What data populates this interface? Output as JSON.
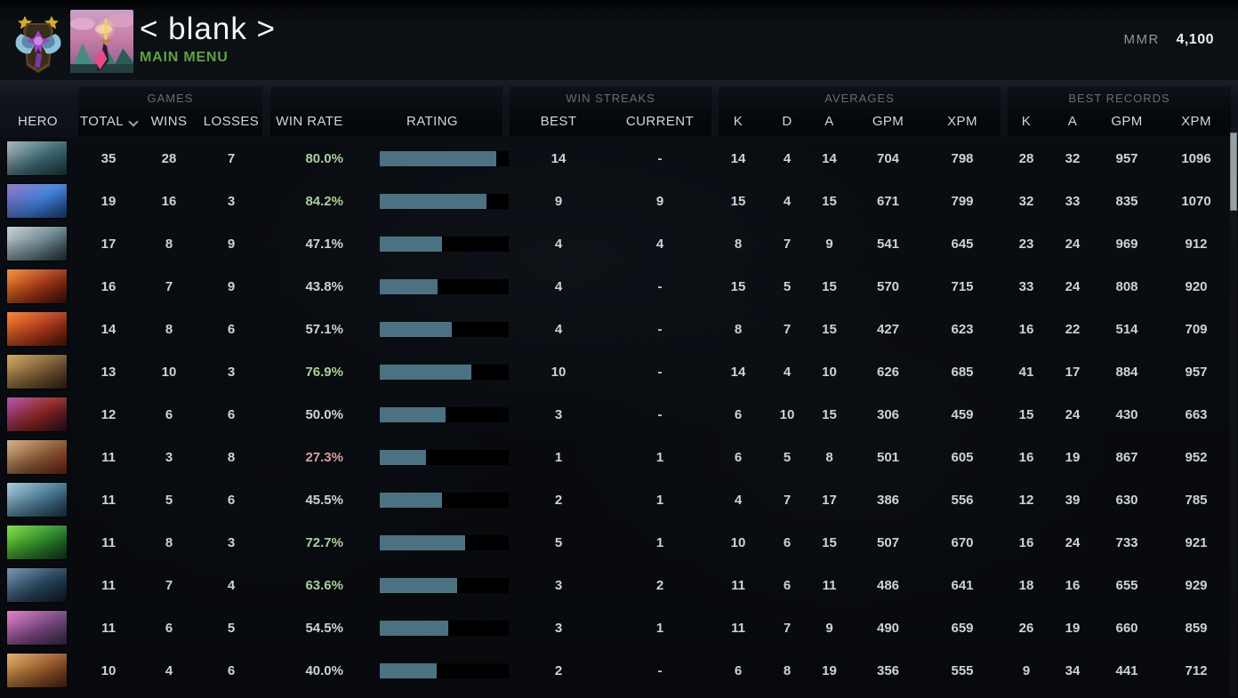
{
  "app": {
    "title": "< blank >",
    "main_menu_label": "MAIN MENU",
    "mmr_label": "MMR",
    "mmr_value": "4,100",
    "rank_medal_icon": "ancient-rank-medal",
    "avatar_icon": "pixel-art-swordsman-avatar"
  },
  "colors": {
    "main_menu_green": "#5fa245",
    "rating_bar_fill": "#4c7182",
    "rating_bar_track": "#000000",
    "win_rate_green": "#a9cf9e",
    "win_rate_red": "#d9a0a0",
    "win_rate_neutral": "#ced3d7"
  },
  "table": {
    "hero_label": "HERO",
    "header": {
      "games_group": "GAMES",
      "total": "TOTAL",
      "sort_icon": "chevron-down",
      "wins": "WINS",
      "losses": "LOSSES",
      "win_rate": "WIN RATE",
      "rating": "RATING",
      "streaks_group": "WIN STREAKS",
      "best": "BEST",
      "current": "CURRENT",
      "averages_group": "AVERAGES",
      "k": "K",
      "d": "D",
      "a": "A",
      "gpm": "GPM",
      "xpm": "XPM",
      "records_group": "BEST RECORDS",
      "rk": "K",
      "ra": "A",
      "rgpm": "GPM",
      "rxpm": "XPM"
    },
    "rows": [
      {
        "hero": "kunkka",
        "portrait": [
          "#9fb0b5",
          "#3d6a74",
          "#203a40"
        ],
        "total": "35",
        "wins": "28",
        "losses": "7",
        "win_rate": "80.0%",
        "win_rate_color": "green",
        "rating_pct": 90,
        "best": "14",
        "current": "-",
        "k": "14",
        "d": "4",
        "a": "14",
        "gpm": "704",
        "xpm": "798",
        "bk": "28",
        "ba": "32",
        "bgpm": "957",
        "bxpm": "1096"
      },
      {
        "hero": "puck",
        "portrait": [
          "#8a6fc0",
          "#3f7fd8",
          "#1e3f7a"
        ],
        "total": "19",
        "wins": "16",
        "losses": "3",
        "win_rate": "84.2%",
        "win_rate_color": "green",
        "rating_pct": 83,
        "best": "9",
        "current": "9",
        "k": "15",
        "d": "4",
        "a": "15",
        "gpm": "671",
        "xpm": "799",
        "bk": "32",
        "ba": "33",
        "bgpm": "835",
        "bxpm": "1070"
      },
      {
        "hero": "sven",
        "portrait": [
          "#c5ccd0",
          "#6e8890",
          "#22343a"
        ],
        "total": "17",
        "wins": "8",
        "losses": "9",
        "win_rate": "47.1%",
        "win_rate_color": "neutral",
        "rating_pct": 48,
        "best": "4",
        "current": "4",
        "k": "8",
        "d": "7",
        "a": "9",
        "gpm": "541",
        "xpm": "645",
        "bk": "23",
        "ba": "24",
        "bgpm": "969",
        "bxpm": "912"
      },
      {
        "hero": "ember-spirit",
        "portrait": [
          "#f08a30",
          "#a33617",
          "#40100a"
        ],
        "total": "16",
        "wins": "7",
        "losses": "9",
        "win_rate": "43.8%",
        "win_rate_color": "neutral",
        "rating_pct": 45,
        "best": "4",
        "current": "-",
        "k": "15",
        "d": "5",
        "a": "15",
        "gpm": "570",
        "xpm": "715",
        "bk": "33",
        "ba": "24",
        "bgpm": "808",
        "bxpm": "920"
      },
      {
        "hero": "troll-warlord",
        "portrait": [
          "#f07a28",
          "#b03a1c",
          "#501408"
        ],
        "total": "14",
        "wins": "8",
        "losses": "6",
        "win_rate": "57.1%",
        "win_rate_color": "neutral",
        "rating_pct": 56,
        "best": "4",
        "current": "-",
        "k": "8",
        "d": "7",
        "a": "15",
        "gpm": "427",
        "xpm": "623",
        "bk": "16",
        "ba": "22",
        "bgpm": "514",
        "bxpm": "709"
      },
      {
        "hero": "batrider",
        "portrait": [
          "#c9a05c",
          "#7c5c34",
          "#34241a"
        ],
        "total": "13",
        "wins": "10",
        "losses": "3",
        "win_rate": "76.9%",
        "win_rate_color": "green",
        "rating_pct": 71,
        "best": "10",
        "current": "-",
        "k": "14",
        "d": "4",
        "a": "10",
        "gpm": "626",
        "xpm": "685",
        "bk": "41",
        "ba": "17",
        "bgpm": "884",
        "bxpm": "957"
      },
      {
        "hero": "lion",
        "portrait": [
          "#a84aa0",
          "#8c2420",
          "#2a1024"
        ],
        "total": "12",
        "wins": "6",
        "losses": "6",
        "win_rate": "50.0%",
        "win_rate_color": "neutral",
        "rating_pct": 51,
        "best": "3",
        "current": "-",
        "k": "6",
        "d": "10",
        "a": "15",
        "gpm": "306",
        "xpm": "459",
        "bk": "15",
        "ba": "24",
        "bgpm": "430",
        "bxpm": "663"
      },
      {
        "hero": "lifestealer",
        "portrait": [
          "#cfa87e",
          "#8a5a36",
          "#6e2414"
        ],
        "total": "11",
        "wins": "3",
        "losses": "8",
        "win_rate": "27.3%",
        "win_rate_color": "red",
        "rating_pct": 36,
        "best": "1",
        "current": "1",
        "k": "6",
        "d": "5",
        "a": "8",
        "gpm": "501",
        "xpm": "605",
        "bk": "16",
        "ba": "19",
        "bgpm": "867",
        "bxpm": "952"
      },
      {
        "hero": "magnus",
        "portrait": [
          "#9fc4d4",
          "#4a7a94",
          "#1c3648"
        ],
        "total": "11",
        "wins": "5",
        "losses": "6",
        "win_rate": "45.5%",
        "win_rate_color": "neutral",
        "rating_pct": 48,
        "best": "2",
        "current": "1",
        "k": "4",
        "d": "7",
        "a": "17",
        "gpm": "386",
        "xpm": "556",
        "bk": "12",
        "ba": "39",
        "bgpm": "630",
        "bxpm": "785"
      },
      {
        "hero": "rubick",
        "portrait": [
          "#7ad83c",
          "#2e8a2a",
          "#0c3a18"
        ],
        "total": "11",
        "wins": "8",
        "losses": "3",
        "win_rate": "72.7%",
        "win_rate_color": "green",
        "rating_pct": 66,
        "best": "5",
        "current": "1",
        "k": "10",
        "d": "6",
        "a": "15",
        "gpm": "507",
        "xpm": "670",
        "bk": "16",
        "ba": "24",
        "bgpm": "733",
        "bxpm": "921"
      },
      {
        "hero": "phantom-assassin",
        "portrait": [
          "#6e8aa8",
          "#28455c",
          "#0e1c2a"
        ],
        "total": "11",
        "wins": "7",
        "losses": "4",
        "win_rate": "63.6%",
        "win_rate_color": "green",
        "rating_pct": 60,
        "best": "3",
        "current": "2",
        "k": "11",
        "d": "6",
        "a": "11",
        "gpm": "486",
        "xpm": "641",
        "bk": "18",
        "ba": "16",
        "bgpm": "655",
        "bxpm": "929"
      },
      {
        "hero": "templar-assassin",
        "portrait": [
          "#d878c0",
          "#7c4884",
          "#38304a"
        ],
        "total": "11",
        "wins": "6",
        "losses": "5",
        "win_rate": "54.5%",
        "win_rate_color": "neutral",
        "rating_pct": 53,
        "best": "3",
        "current": "1",
        "k": "11",
        "d": "7",
        "a": "9",
        "gpm": "490",
        "xpm": "659",
        "bk": "26",
        "ba": "19",
        "bgpm": "660",
        "bxpm": "859"
      },
      {
        "hero": "earthshaker",
        "portrait": [
          "#d8a860",
          "#9a5c2c",
          "#4a2414"
        ],
        "total": "10",
        "wins": "4",
        "losses": "6",
        "win_rate": "40.0%",
        "win_rate_color": "neutral",
        "rating_pct": 44,
        "best": "2",
        "current": "-",
        "k": "6",
        "d": "8",
        "a": "19",
        "gpm": "356",
        "xpm": "555",
        "bk": "9",
        "ba": "34",
        "bgpm": "441",
        "bxpm": "712"
      }
    ]
  }
}
